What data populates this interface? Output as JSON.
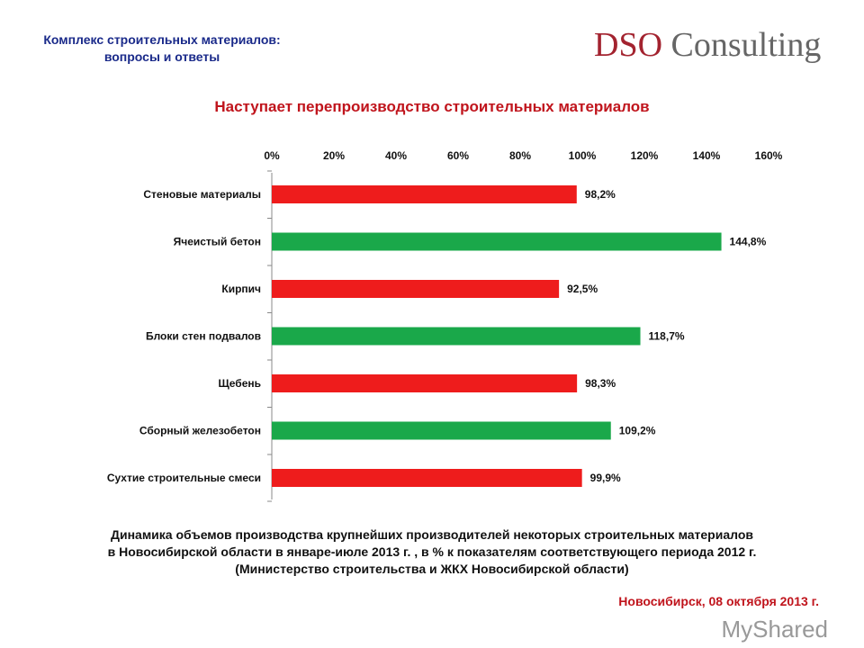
{
  "header": {
    "line1": "Комплекс строительных материалов:",
    "line2": "вопросы и ответы"
  },
  "logo": {
    "part1": "DSO",
    "part2": " Consulting"
  },
  "footer": {
    "place_date": "Новосибирск, 08 октября 2013 г.",
    "watermark": "MyShared"
  },
  "note": {
    "line1": "Динамика объемов производства крупнейших производителей некоторых строительных материалов",
    "line2": "в Новосибирской области в январе-июле 2013 г. , в % к показателям соответствующего периода 2012 г.",
    "line3": "(Министерство строительства и ЖКХ Новосибирской области)"
  },
  "chart_data": {
    "type": "bar",
    "orientation": "horizontal",
    "title": "Наступает перепроизводство строительных материалов",
    "categories": [
      "Стеновые материалы",
      "Ячеистый бетон",
      "Кирпич",
      "Блоки стен подвалов",
      "Щебень",
      "Сборный железобетон",
      "Сухтие строительные смеси"
    ],
    "values": [
      98.2,
      144.8,
      92.5,
      118.7,
      98.3,
      109.2,
      99.9
    ],
    "data_labels": [
      "98,2%",
      "144,8%",
      "92,5%",
      "118,7%",
      "98,3%",
      "109,2%",
      "99,9%"
    ],
    "xlim": [
      0,
      160
    ],
    "x_ticks": [
      "0%",
      "20%",
      "40%",
      "60%",
      "80%",
      "100%",
      "120%",
      "140%",
      "160%"
    ],
    "x_axis_position": "top",
    "grid": false,
    "colors": {
      "below_100": "#ee1c1c",
      "above_100": "#1aa84a"
    }
  }
}
